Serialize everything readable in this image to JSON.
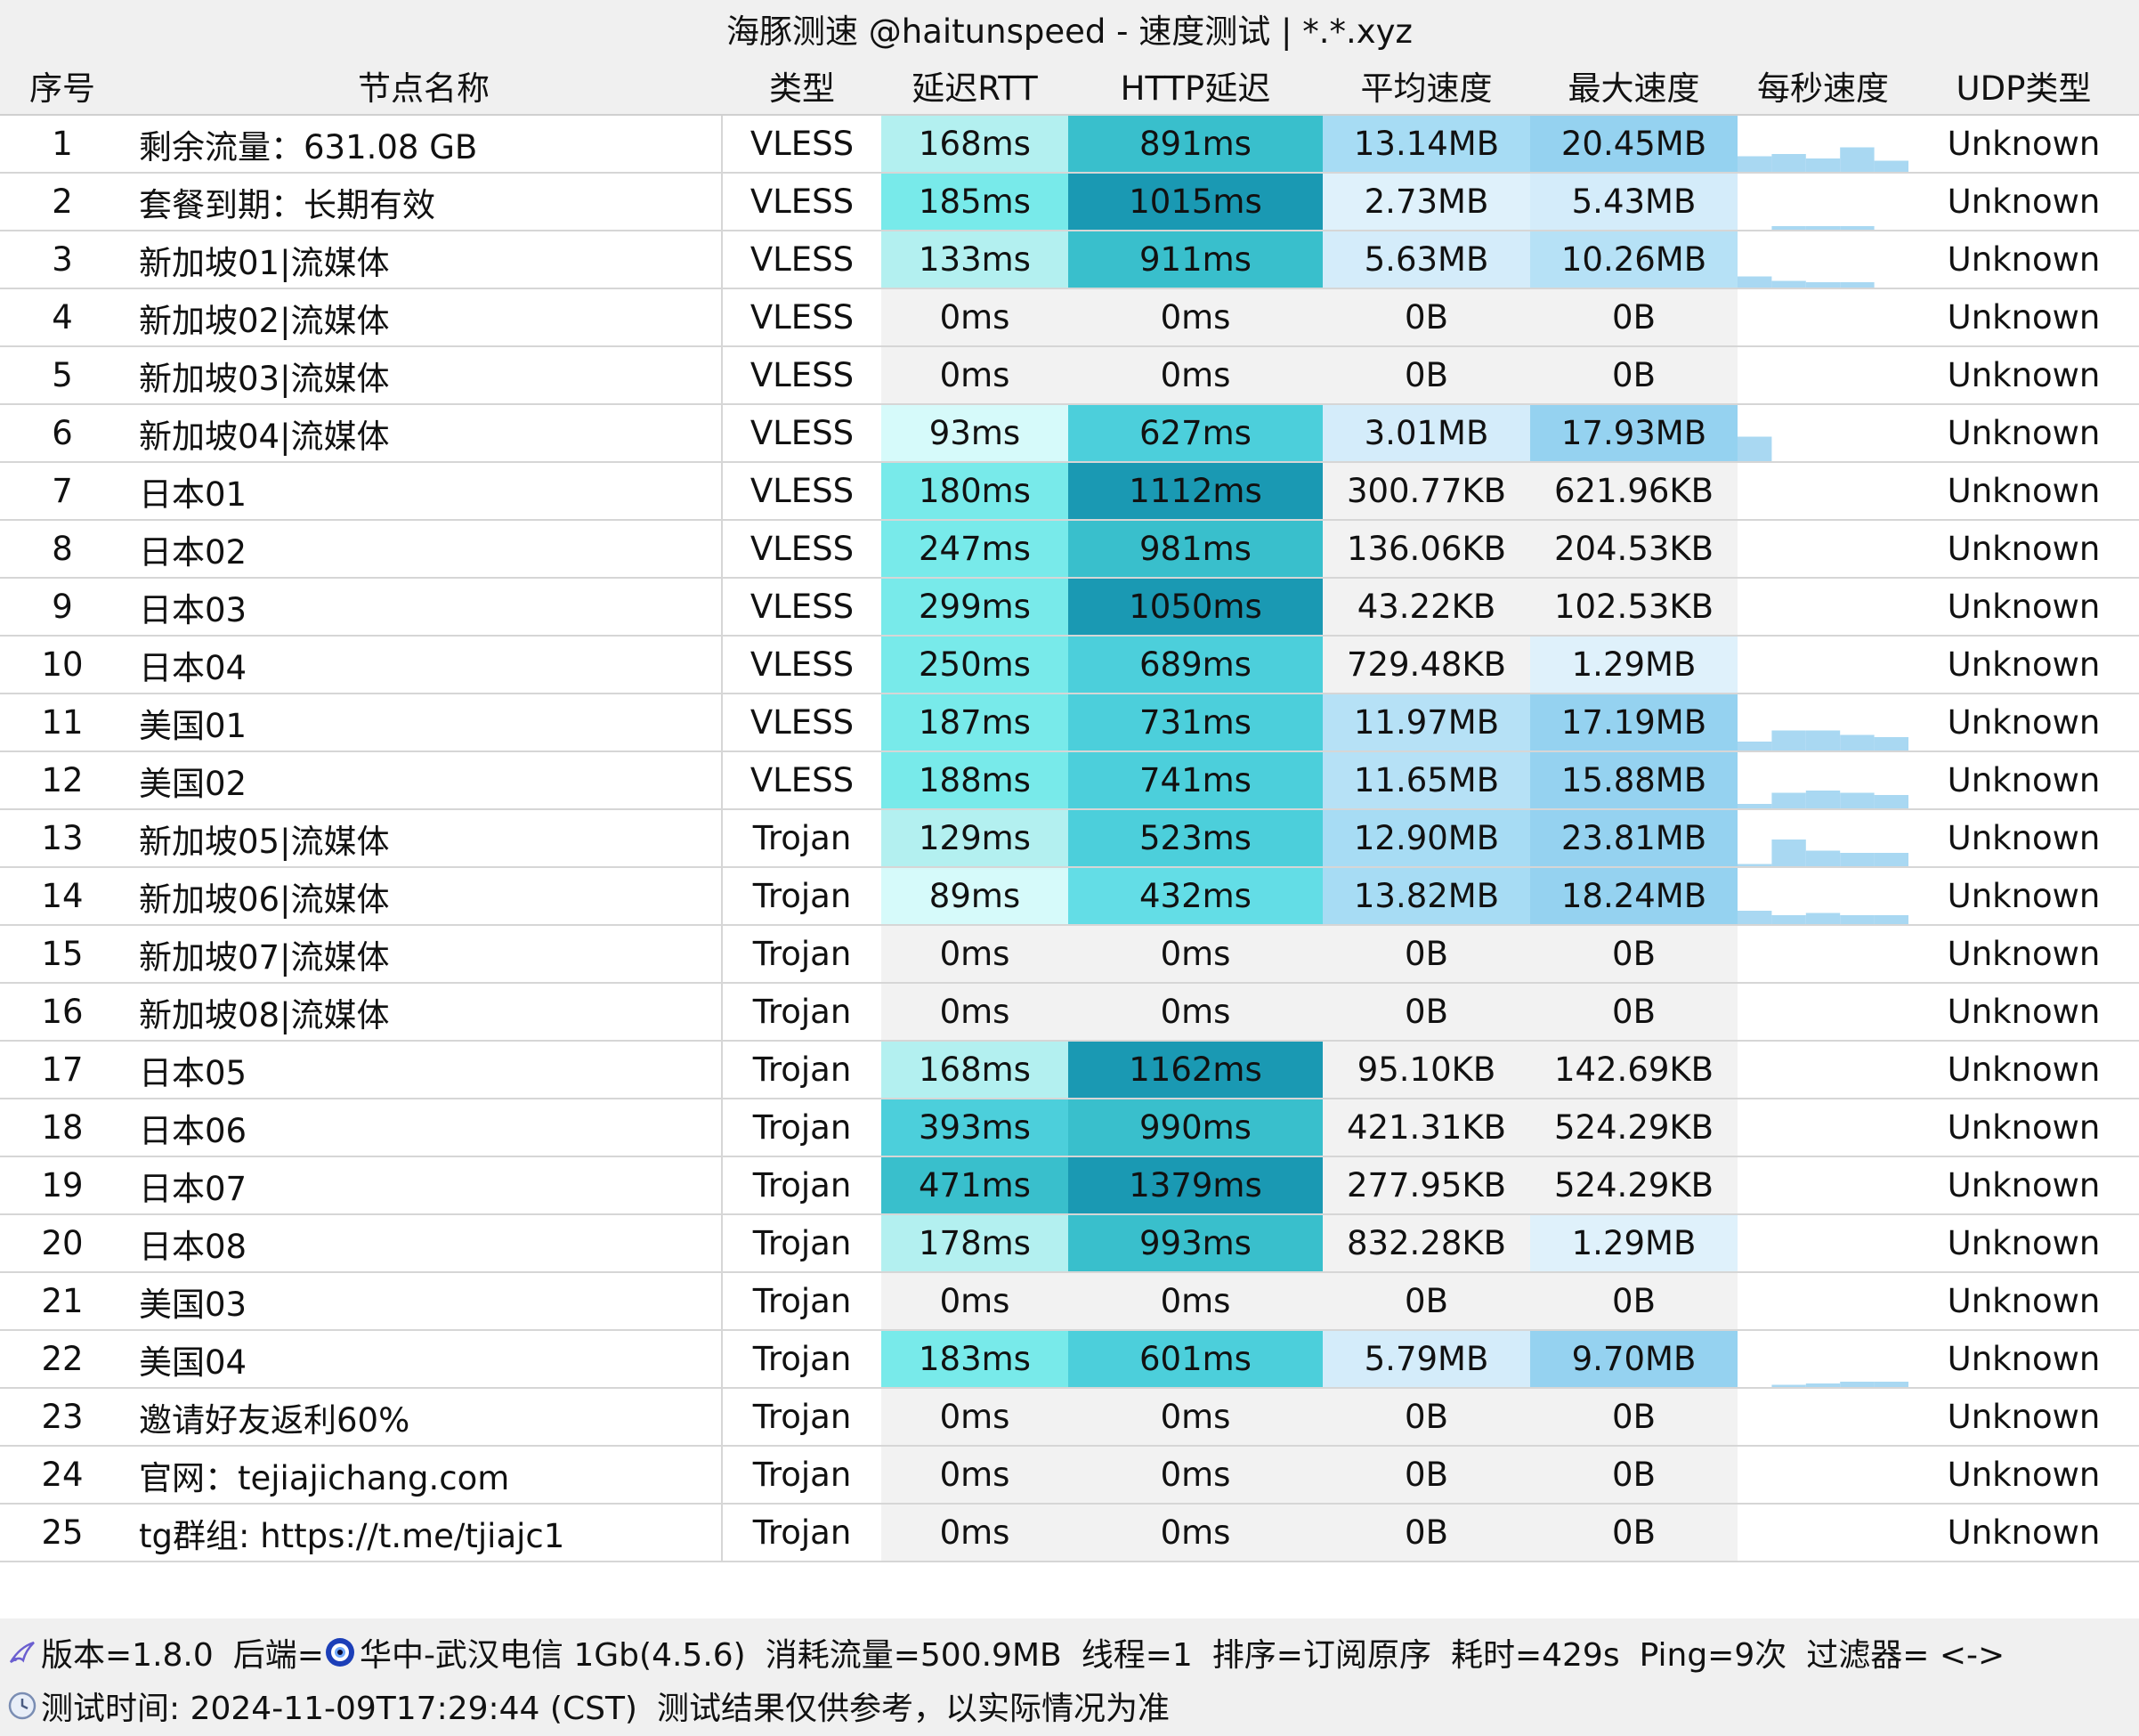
{
  "window": {
    "title": "海豚测速 @haitunspeed - 速度测试 | *.*.xyz"
  },
  "columns": [
    "序号",
    "节点名称",
    "类型",
    "延迟RTT",
    "HTTP延迟",
    "平均速度",
    "最大速度",
    "每秒速度",
    "UDP类型"
  ],
  "rows": [
    {
      "idx": "1",
      "name": "剩余流量：631.08 GB",
      "type": "VLESS",
      "rtt": "168ms",
      "http": "891ms",
      "avg": "13.14MB",
      "max": "20.45MB",
      "udp": "Unknown",
      "rtt_bg": "#b3f0f0",
      "http_bg": "#39bfcc",
      "avg_bg": "#a7dcf4",
      "max_bg": "#95d2f0",
      "spark": [
        0.35,
        0.4,
        0.3,
        0.55,
        0.25
      ]
    },
    {
      "idx": "2",
      "name": "套餐到期：长期有效",
      "type": "VLESS",
      "rtt": "185ms",
      "http": "1015ms",
      "avg": "2.73MB",
      "max": "5.43MB",
      "udp": "Unknown",
      "rtt_bg": "#78eaea",
      "http_bg": "#1a99b3",
      "avg_bg": "#dff1fb",
      "max_bg": "#d4ecfa",
      "spark": [
        0,
        0.08,
        0.08,
        0.08,
        0
      ]
    },
    {
      "idx": "3",
      "name": "新加坡01|流媒体",
      "type": "VLESS",
      "rtt": "133ms",
      "http": "911ms",
      "avg": "5.63MB",
      "max": "10.26MB",
      "udp": "Unknown",
      "rtt_bg": "#b3f0f0",
      "http_bg": "#39bfcc",
      "avg_bg": "#d4ecfa",
      "max_bg": "#b6e1f6",
      "spark": [
        0.25,
        0.15,
        0.12,
        0.12,
        0
      ]
    },
    {
      "idx": "4",
      "name": "新加坡02|流媒体",
      "type": "VLESS",
      "rtt": "0ms",
      "http": "0ms",
      "avg": "0B",
      "max": "0B",
      "udp": "Unknown",
      "rtt_bg": "#f2f2f2",
      "http_bg": "#f2f2f2",
      "avg_bg": "#f2f2f2",
      "max_bg": "#f2f2f2",
      "spark": []
    },
    {
      "idx": "5",
      "name": "新加坡03|流媒体",
      "type": "VLESS",
      "rtt": "0ms",
      "http": "0ms",
      "avg": "0B",
      "max": "0B",
      "udp": "Unknown",
      "rtt_bg": "#f2f2f2",
      "http_bg": "#f2f2f2",
      "avg_bg": "#f2f2f2",
      "max_bg": "#f2f2f2",
      "spark": []
    },
    {
      "idx": "6",
      "name": "新加坡04|流媒体",
      "type": "VLESS",
      "rtt": "93ms",
      "http": "627ms",
      "avg": "3.01MB",
      "max": "17.93MB",
      "udp": "Unknown",
      "rtt_bg": "#d6fafa",
      "http_bg": "#4ccfdb",
      "avg_bg": "#d4ecfa",
      "max_bg": "#95d2f0",
      "spark": [
        0.55,
        0,
        0,
        0,
        0
      ]
    },
    {
      "idx": "7",
      "name": "日本01",
      "type": "VLESS",
      "rtt": "180ms",
      "http": "1112ms",
      "avg": "300.77KB",
      "max": "621.96KB",
      "udp": "Unknown",
      "rtt_bg": "#78eaea",
      "http_bg": "#1a99b3",
      "avg_bg": "#f2f2f2",
      "max_bg": "#f2f2f2",
      "spark": []
    },
    {
      "idx": "8",
      "name": "日本02",
      "type": "VLESS",
      "rtt": "247ms",
      "http": "981ms",
      "avg": "136.06KB",
      "max": "204.53KB",
      "udp": "Unknown",
      "rtt_bg": "#78eaea",
      "http_bg": "#39bfcc",
      "avg_bg": "#f2f2f2",
      "max_bg": "#f2f2f2",
      "spark": []
    },
    {
      "idx": "9",
      "name": "日本03",
      "type": "VLESS",
      "rtt": "299ms",
      "http": "1050ms",
      "avg": "43.22KB",
      "max": "102.53KB",
      "udp": "Unknown",
      "rtt_bg": "#78eaea",
      "http_bg": "#1a99b3",
      "avg_bg": "#f2f2f2",
      "max_bg": "#f2f2f2",
      "spark": []
    },
    {
      "idx": "10",
      "name": "日本04",
      "type": "VLESS",
      "rtt": "250ms",
      "http": "689ms",
      "avg": "729.48KB",
      "max": "1.29MB",
      "udp": "Unknown",
      "rtt_bg": "#78eaea",
      "http_bg": "#4ccfdb",
      "avg_bg": "#f2f2f2",
      "max_bg": "#dff1fb",
      "spark": []
    },
    {
      "idx": "11",
      "name": "美国01",
      "type": "VLESS",
      "rtt": "187ms",
      "http": "731ms",
      "avg": "11.97MB",
      "max": "17.19MB",
      "udp": "Unknown",
      "rtt_bg": "#78eaea",
      "http_bg": "#4ccfdb",
      "avg_bg": "#b6e1f6",
      "max_bg": "#95d2f0",
      "spark": [
        0.2,
        0.45,
        0.45,
        0.35,
        0.3
      ]
    },
    {
      "idx": "12",
      "name": "美国02",
      "type": "VLESS",
      "rtt": "188ms",
      "http": "741ms",
      "avg": "11.65MB",
      "max": "15.88MB",
      "udp": "Unknown",
      "rtt_bg": "#78eaea",
      "http_bg": "#4ccfdb",
      "avg_bg": "#b6e1f6",
      "max_bg": "#95d2f0",
      "spark": [
        0.1,
        0.35,
        0.4,
        0.35,
        0.3
      ]
    },
    {
      "idx": "13",
      "name": "新加坡05|流媒体",
      "type": "Trojan",
      "rtt": "129ms",
      "http": "523ms",
      "avg": "12.90MB",
      "max": "23.81MB",
      "udp": "Unknown",
      "rtt_bg": "#b3f0f0",
      "http_bg": "#4ccfdb",
      "avg_bg": "#a7dcf4",
      "max_bg": "#95d2f0",
      "spark": [
        0.05,
        0.6,
        0.35,
        0.3,
        0.3
      ]
    },
    {
      "idx": "14",
      "name": "新加坡06|流媒体",
      "type": "Trojan",
      "rtt": "89ms",
      "http": "432ms",
      "avg": "13.82MB",
      "max": "18.24MB",
      "udp": "Unknown",
      "rtt_bg": "#d6fafa",
      "http_bg": "#63dde6",
      "avg_bg": "#a7dcf4",
      "max_bg": "#95d2f0",
      "spark": [
        0.3,
        0.2,
        0.25,
        0.2,
        0.2
      ]
    },
    {
      "idx": "15",
      "name": "新加坡07|流媒体",
      "type": "Trojan",
      "rtt": "0ms",
      "http": "0ms",
      "avg": "0B",
      "max": "0B",
      "udp": "Unknown",
      "rtt_bg": "#f2f2f2",
      "http_bg": "#f2f2f2",
      "avg_bg": "#f2f2f2",
      "max_bg": "#f2f2f2",
      "spark": []
    },
    {
      "idx": "16",
      "name": "新加坡08|流媒体",
      "type": "Trojan",
      "rtt": "0ms",
      "http": "0ms",
      "avg": "0B",
      "max": "0B",
      "udp": "Unknown",
      "rtt_bg": "#f2f2f2",
      "http_bg": "#f2f2f2",
      "avg_bg": "#f2f2f2",
      "max_bg": "#f2f2f2",
      "spark": []
    },
    {
      "idx": "17",
      "name": "日本05",
      "type": "Trojan",
      "rtt": "168ms",
      "http": "1162ms",
      "avg": "95.10KB",
      "max": "142.69KB",
      "udp": "Unknown",
      "rtt_bg": "#b3f0f0",
      "http_bg": "#1a99b3",
      "avg_bg": "#f2f2f2",
      "max_bg": "#f2f2f2",
      "spark": []
    },
    {
      "idx": "18",
      "name": "日本06",
      "type": "Trojan",
      "rtt": "393ms",
      "http": "990ms",
      "avg": "421.31KB",
      "max": "524.29KB",
      "udp": "Unknown",
      "rtt_bg": "#4ccfdb",
      "http_bg": "#39bfcc",
      "avg_bg": "#f2f2f2",
      "max_bg": "#f2f2f2",
      "spark": []
    },
    {
      "idx": "19",
      "name": "日本07",
      "type": "Trojan",
      "rtt": "471ms",
      "http": "1379ms",
      "avg": "277.95KB",
      "max": "524.29KB",
      "udp": "Unknown",
      "rtt_bg": "#39bfcc",
      "http_bg": "#1a99b3",
      "avg_bg": "#f2f2f2",
      "max_bg": "#f2f2f2",
      "spark": []
    },
    {
      "idx": "20",
      "name": "日本08",
      "type": "Trojan",
      "rtt": "178ms",
      "http": "993ms",
      "avg": "832.28KB",
      "max": "1.29MB",
      "udp": "Unknown",
      "rtt_bg": "#b3f0f0",
      "http_bg": "#39bfcc",
      "avg_bg": "#f2f2f2",
      "max_bg": "#dff1fb",
      "spark": []
    },
    {
      "idx": "21",
      "name": "美国03",
      "type": "Trojan",
      "rtt": "0ms",
      "http": "0ms",
      "avg": "0B",
      "max": "0B",
      "udp": "Unknown",
      "rtt_bg": "#f2f2f2",
      "http_bg": "#f2f2f2",
      "avg_bg": "#f2f2f2",
      "max_bg": "#f2f2f2",
      "spark": []
    },
    {
      "idx": "22",
      "name": "美国04",
      "type": "Trojan",
      "rtt": "183ms",
      "http": "601ms",
      "avg": "5.79MB",
      "max": "9.70MB",
      "udp": "Unknown",
      "rtt_bg": "#78eaea",
      "http_bg": "#4ccfdb",
      "avg_bg": "#d4ecfa",
      "max_bg": "#95d2f0",
      "spark": [
        0,
        0.05,
        0.08,
        0.12,
        0.12
      ]
    },
    {
      "idx": "23",
      "name": "邀请好友返利60%",
      "type": "Trojan",
      "rtt": "0ms",
      "http": "0ms",
      "avg": "0B",
      "max": "0B",
      "udp": "Unknown",
      "rtt_bg": "#f2f2f2",
      "http_bg": "#f2f2f2",
      "avg_bg": "#f2f2f2",
      "max_bg": "#f2f2f2",
      "spark": []
    },
    {
      "idx": "24",
      "name": "官网：tejiajichang.com",
      "type": "Trojan",
      "rtt": "0ms",
      "http": "0ms",
      "avg": "0B",
      "max": "0B",
      "udp": "Unknown",
      "rtt_bg": "#f2f2f2",
      "http_bg": "#f2f2f2",
      "avg_bg": "#f2f2f2",
      "max_bg": "#f2f2f2",
      "spark": []
    },
    {
      "idx": "25",
      "name": "tg群组: https://t.me/tjiajc1",
      "type": "Trojan",
      "rtt": "0ms",
      "http": "0ms",
      "avg": "0B",
      "max": "0B",
      "udp": "Unknown",
      "rtt_bg": "#f2f2f2",
      "http_bg": "#f2f2f2",
      "avg_bg": "#f2f2f2",
      "max_bg": "#f2f2f2",
      "spark": []
    }
  ],
  "spark_color": "#a9d8f2",
  "footer": {
    "line1": {
      "version": "版本=1.8.0",
      "backend_label": "后端=",
      "backend_value": "华中-武汉电信 1Gb(4.5.6)",
      "traffic": "消耗流量=500.9MB",
      "threads": "线程=1",
      "sort": "排序=订阅原序",
      "duration": "耗时=429s",
      "ping": "Ping=9次",
      "filter": "过滤器= <->"
    },
    "line2": {
      "test_time": "测试时间: 2024-11-09T17:29:44 (CST)",
      "note": "测试结果仅供参考，以实际情况为准"
    }
  }
}
